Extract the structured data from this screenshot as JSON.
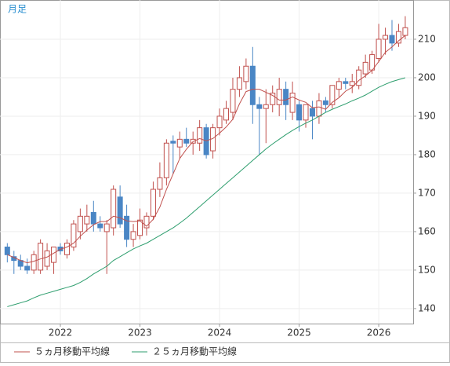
{
  "chart_data": {
    "type": "candlestick",
    "label": "月足",
    "categories": [
      null,
      null,
      null,
      null,
      null,
      null,
      null,
      null,
      "2022",
      null,
      null,
      null,
      null,
      null,
      null,
      null,
      null,
      null,
      null,
      null,
      "2023",
      null,
      null,
      null,
      null,
      null,
      null,
      null,
      null,
      null,
      null,
      null,
      "2024",
      null,
      null,
      null,
      null,
      null,
      null,
      null,
      null,
      null,
      null,
      null,
      "2025",
      null,
      null,
      null,
      null,
      null,
      null,
      null,
      null,
      null,
      null,
      null,
      "2026",
      null,
      null,
      null,
      null
    ],
    "open": [
      156,
      153.5,
      152.5,
      151,
      150,
      150,
      151,
      152,
      156,
      154,
      156,
      160,
      162,
      165,
      162,
      160,
      161,
      169,
      164,
      158,
      159,
      161,
      164,
      171,
      174,
      183.5,
      182,
      184,
      183,
      183,
      187,
      181,
      187,
      189,
      191,
      197,
      199,
      203,
      193,
      192,
      193,
      193,
      197,
      191,
      193,
      189,
      192,
      190,
      194,
      193,
      197,
      199,
      198,
      198,
      201,
      202,
      205,
      210,
      211,
      209,
      211
    ],
    "high": [
      157,
      155,
      154,
      153,
      155,
      158,
      157,
      156,
      157,
      158,
      163,
      166,
      167,
      168,
      164,
      163,
      172,
      172,
      167,
      162,
      166,
      165,
      173,
      178,
      184,
      185,
      186,
      187,
      186,
      189,
      188,
      188,
      192,
      194,
      200,
      203,
      205,
      208,
      195,
      197,
      198,
      200,
      199,
      199,
      194,
      193,
      194,
      196,
      195,
      198,
      200,
      200,
      201,
      203,
      206,
      207,
      214,
      213,
      215,
      214,
      216
    ],
    "low": [
      152,
      149,
      150,
      149,
      149,
      149,
      150,
      149,
      154,
      153,
      155,
      158,
      160,
      160,
      160,
      149,
      159,
      161,
      156,
      156,
      158,
      159,
      163,
      169,
      172,
      175,
      179,
      182,
      180,
      181,
      179,
      179,
      185,
      188,
      189,
      195,
      197,
      188,
      180,
      183,
      191,
      190,
      189,
      189,
      186,
      187,
      184,
      188,
      191,
      192,
      195,
      197,
      196,
      197,
      200,
      201,
      204,
      206,
      207,
      208,
      210
    ],
    "close": [
      154,
      152.5,
      151,
      150,
      154,
      157,
      155,
      156,
      155,
      157,
      162,
      164,
      164,
      162,
      161,
      162,
      171,
      162,
      158,
      160,
      163,
      164,
      171,
      174,
      183,
      183,
      184,
      183,
      184,
      187,
      180,
      187,
      190,
      192,
      197,
      200,
      203,
      193,
      192,
      193,
      196,
      197,
      193,
      196,
      189,
      193,
      190,
      194,
      193,
      198,
      199,
      198.5,
      199,
      202,
      204,
      206,
      210,
      211,
      209,
      212,
      213
    ],
    "series": [
      {
        "name": "５ヵ月移動平均線",
        "color": "#c0504d",
        "values": [
          154,
          153.3,
          152.5,
          151.9,
          152.3,
          152.9,
          153.4,
          154.4,
          155.4,
          156,
          157,
          158.8,
          160.4,
          161.8,
          162.6,
          162.6,
          164,
          163.6,
          162.8,
          162.6,
          162.8,
          161.4,
          163.2,
          166.4,
          171,
          175,
          179,
          181.4,
          183.4,
          184.2,
          183.6,
          184.2,
          185.6,
          187.2,
          189.2,
          193.2,
          196.4,
          197,
          197,
          196.2,
          195.4,
          194.2,
          194.2,
          195,
          194.2,
          193.6,
          192.2,
          192.4,
          191.8,
          193.6,
          194.8,
          196.5,
          197.5,
          199.3,
          200.5,
          201.9,
          204.2,
          206.6,
          208,
          209.6,
          211
        ]
      },
      {
        "name": "２５ヵ月移動平均線",
        "color": "#2e9e6e",
        "values": [
          140.5,
          141,
          141.5,
          142,
          142.8,
          143.5,
          144,
          144.5,
          145,
          145.5,
          146,
          146.8,
          147.8,
          149,
          150,
          151,
          152.5,
          153.5,
          154.5,
          155.5,
          156.3,
          157,
          158,
          159,
          160,
          161,
          162.2,
          163.5,
          165,
          166.5,
          168,
          169.5,
          171,
          172.5,
          174,
          175.5,
          177,
          178.5,
          180,
          181.5,
          182.8,
          184,
          185.2,
          186.3,
          187.3,
          188.2,
          189,
          190,
          191,
          191.8,
          192.5,
          193.2,
          194,
          194.7,
          195.5,
          196.5,
          197.5,
          198.3,
          199,
          199.5,
          200
        ]
      }
    ],
    "up_color": "#c0504d",
    "down_color": "#4a86c5",
    "ylim": [
      136.1,
      220.2
    ],
    "yticks": [
      140,
      150,
      160,
      170,
      180,
      190,
      200,
      210
    ],
    "grid": true
  }
}
